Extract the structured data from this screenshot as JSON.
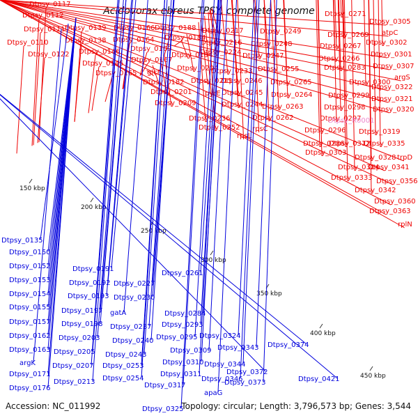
{
  "title": "Acidovorax ebreus TPSY, complete genome",
  "footer": {
    "accession": "Accession: NC_011992",
    "summary": "Topology: circular; Length: 3,796,573 bp; Genes: 3,544"
  },
  "colors": {
    "forward": "#ee0000",
    "reverse": "#0000dd",
    "rna_label": "#ee88cc",
    "backbone": "#888888",
    "marker": "#2e8b2e"
  },
  "scale_labels": [
    "150 kbp",
    "200 kbp",
    "250 kbp",
    "300 kbp",
    "350 kbp",
    "400 kbp",
    "450 kbp"
  ],
  "forward_labels": [
    "Dtpsy_0117",
    "Dtpsy_0112",
    "Dtpsy_0111",
    "Dtpsy_0110",
    "Dtpsy_0122",
    "Dtpsy_0139",
    "Dtpsy_0138",
    "Dtpsy_0146",
    "Dtpsy_0145",
    "Dtpsy_0166",
    "Dtpsy_0164",
    "Dtpsy_0169",
    "Dtpsy_0167",
    "Dtpsy_0165",
    "Dtpsy_0188",
    "Dtpsy_0184",
    "Dtpsy_0194",
    "glcF",
    "Dtpsy_0182",
    "Dtpsy_0201",
    "Dtpsy_0209",
    "Dtpsy_0217",
    "Dtpsy_0216",
    "Dtpsy_0224",
    "Dtpsy_0204",
    "Dtpsy_0215",
    "Dtpsy_0233",
    "Dtpsy_0246",
    "pyrE",
    "Dtpsy_0245",
    "Dtpsy_0244",
    "Dtpsy_0236",
    "Dtpsy_0252",
    "Dtpsy_0249",
    "Dtpsy_0248",
    "Dtpsy_0247",
    "Dtpsy_0255",
    "Dtpsy_0265",
    "Dtpsy_0264",
    "Dtpsy_0263",
    "Dtpsy_0262",
    "rpsC",
    "rpsL",
    "Dtpsy_0271",
    "Dtpsy_0269",
    "Dtpsy_0267",
    "Dtpsy_0266",
    "Dtpsy_0283",
    "Dtpsy_0300",
    "Dtpsy_0299",
    "Dtpsy_0298",
    "Dtpsy_0297",
    "Dtpsy_0296",
    "Dtpsy_0286",
    "Dtpsy_0303",
    "Dtpsy_0312",
    "Dtpsy_0305",
    "atpC",
    "Dtpsy_0302",
    "Dtpsy_0301",
    "Dtpsy_0307",
    "argS",
    "Dtpsy_0322",
    "Dtpsy_0321",
    "Dtpsy_0320",
    "Dtpsy_0319",
    "Dtpsy_0335",
    "Dtpsy_0328",
    "Dtpsy_0314",
    "trpD",
    "Dtpsy_0341",
    "Dtpsy_0333",
    "Dtpsy_0356",
    "Dtpsy_0342",
    "Dtpsy_0360",
    "Dtpsy_0363",
    "rplN"
  ],
  "rna_labels": [
    "Dtpsy_R0001"
  ],
  "reverse_labels": [
    "Dtpsy_0135",
    "Dtpsy_0150",
    "Dtpsy_0152",
    "Dtpsy_0153",
    "Dtpsy_0154",
    "Dtpsy_0155",
    "Dtpsy_0157",
    "Dtpsy_0162",
    "Dtpsy_0163",
    "argK",
    "Dtpsy_0171",
    "Dtpsy_0176",
    "Dtpsy_0191",
    "Dtpsy_0192",
    "Dtpsy_0193",
    "Dtpsy_0197",
    "Dtpsy_0198",
    "Dtpsy_0203",
    "Dtpsy_0205",
    "Dtpsy_0207",
    "Dtpsy_0213",
    "Dtpsy_0261",
    "Dtpsy_0227",
    "Dtpsy_0230",
    "gatA",
    "Dtpsy_0237",
    "Dtpsy_0240",
    "Dtpsy_0243",
    "Dtpsy_0253",
    "Dtpsy_0254",
    "Dtpsy_0284",
    "Dtpsy_0293",
    "Dtpsy_0295",
    "Dtpsy_0309",
    "Dtpsy_0310",
    "Dtpsy_0311",
    "Dtpsy_0317",
    "Dtpsy_0324",
    "Dtpsy_0343",
    "Dtpsy_0344",
    "Dtpsy_0346",
    "apaG",
    "Dtpsy_0325",
    "Dtpsy_0374",
    "Dtpsy_0372",
    "Dtpsy_0373",
    "Dtpsy_0421"
  ]
}
